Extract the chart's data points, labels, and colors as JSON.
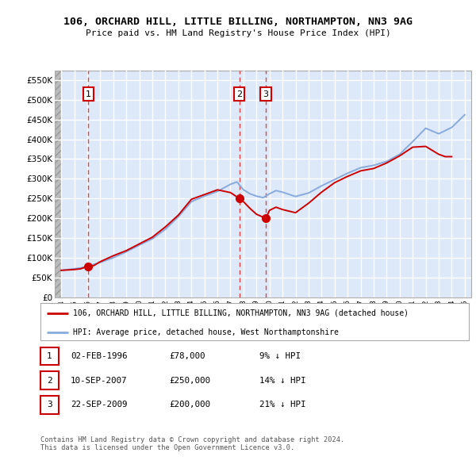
{
  "title": "106, ORCHARD HILL, LITTLE BILLING, NORTHAMPTON, NN3 9AG",
  "subtitle": "Price paid vs. HM Land Registry's House Price Index (HPI)",
  "background_color": "#dde8f8",
  "grid_color": "#ffffff",
  "line_color_red": "#cc0000",
  "line_color_blue": "#88aadd",
  "ylim": [
    0,
    575000
  ],
  "yticks": [
    0,
    50000,
    100000,
    150000,
    200000,
    250000,
    300000,
    350000,
    400000,
    450000,
    500000,
    550000
  ],
  "ytick_labels": [
    "£0",
    "£50K",
    "£100K",
    "£150K",
    "£200K",
    "£250K",
    "£300K",
    "£350K",
    "£400K",
    "£450K",
    "£500K",
    "£550K"
  ],
  "xlim_start": 1993.5,
  "xlim_end": 2025.5,
  "sales": [
    {
      "year": 1996.08,
      "price": 78000,
      "label": "1"
    },
    {
      "year": 2007.69,
      "price": 250000,
      "label": "2"
    },
    {
      "year": 2009.72,
      "price": 200000,
      "label": "3"
    }
  ],
  "table_rows": [
    {
      "num": "1",
      "date": "02-FEB-1996",
      "price": "£78,000",
      "hpi": "9% ↓ HPI"
    },
    {
      "num": "2",
      "date": "10-SEP-2007",
      "price": "£250,000",
      "hpi": "14% ↓ HPI"
    },
    {
      "num": "3",
      "date": "22-SEP-2009",
      "price": "£200,000",
      "hpi": "21% ↓ HPI"
    }
  ],
  "legend_label_red": "106, ORCHARD HILL, LITTLE BILLING, NORTHAMPTON, NN3 9AG (detached house)",
  "legend_label_blue": "HPI: Average price, detached house, West Northamptonshire",
  "footnote": "Contains HM Land Registry data © Crown copyright and database right 2024.\nThis data is licensed under the Open Government Licence v3.0.",
  "hpi_data": {
    "years": [
      1994,
      1995,
      1995.5,
      1996,
      1997,
      1998,
      1999,
      2000,
      2001,
      2002,
      2003,
      2004,
      2005,
      2006,
      2007,
      2007.5,
      2008,
      2008.5,
      2009,
      2009.5,
      2010,
      2010.5,
      2011,
      2012,
      2013,
      2014,
      2015,
      2016,
      2017,
      2018,
      2019,
      2020,
      2021,
      2022,
      2023,
      2024,
      2025
    ],
    "values": [
      68000,
      72000,
      74000,
      78000,
      88000,
      100000,
      115000,
      132000,
      148000,
      172000,
      204000,
      242000,
      256000,
      268000,
      286000,
      292000,
      272000,
      262000,
      256000,
      252000,
      262000,
      270000,
      266000,
      255000,
      264000,
      282000,
      298000,
      314000,
      328000,
      334000,
      344000,
      362000,
      394000,
      428000,
      414000,
      430000,
      462000
    ]
  },
  "price_paid_data": {
    "years": [
      1994,
      1995,
      1995.5,
      1996,
      1996.5,
      1997,
      1998,
      1999,
      2000,
      2001,
      2002,
      2003,
      2004,
      2005,
      2006,
      2007,
      2007.69,
      2008,
      2008.5,
      2009,
      2009.72,
      2010,
      2010.5,
      2011,
      2012,
      2013,
      2014,
      2015,
      2016,
      2017,
      2018,
      2019,
      2020,
      2021,
      2022,
      2023,
      2023.5,
      2024
    ],
    "values": [
      68000,
      70000,
      72000,
      78000,
      80000,
      90000,
      105000,
      118000,
      135000,
      152000,
      178000,
      208000,
      248000,
      260000,
      272000,
      265000,
      250000,
      242000,
      225000,
      210000,
      200000,
      220000,
      228000,
      222000,
      214000,
      238000,
      266000,
      290000,
      306000,
      320000,
      326000,
      340000,
      358000,
      380000,
      382000,
      362000,
      356000,
      356000
    ]
  }
}
